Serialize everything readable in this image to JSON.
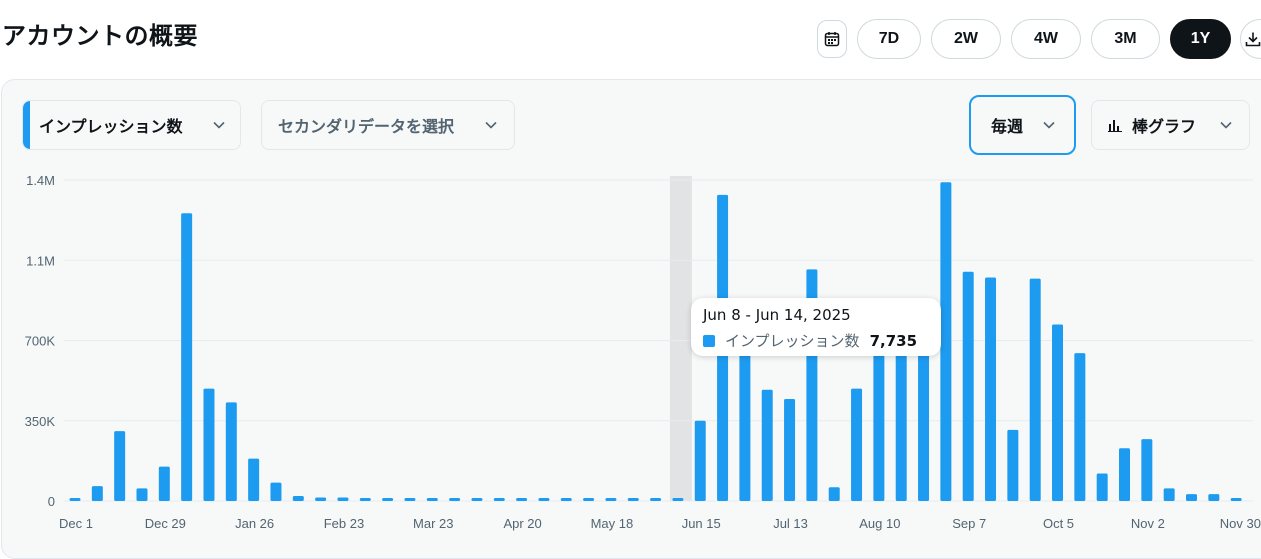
{
  "page": {
    "title": "アカウントの概要"
  },
  "toolbar": {
    "calendar_icon": "calendar-icon",
    "ranges": [
      "7D",
      "2W",
      "4W",
      "3M",
      "1Y"
    ],
    "active_range": "1Y",
    "download_icon": "download-icon"
  },
  "controls": {
    "primary_metric": "インプレッション数",
    "secondary_placeholder": "セカンダリデータを選択",
    "period": "毎週",
    "chart_type": "棒グラフ"
  },
  "tooltip": {
    "range": "Jun 8 - Jun 14, 2025",
    "series": "インプレッション数",
    "value": "7,735"
  },
  "colors": {
    "bar": "#1d9bf0",
    "highlight": "#e1e3e5",
    "accent": "#1d9bf0"
  },
  "chart_data": {
    "type": "bar",
    "series": [
      {
        "name": "インプレッション数"
      }
    ],
    "y_ticks": [
      "0",
      "350K",
      "700K",
      "1.1M",
      "1.4M"
    ],
    "ylim": [
      0,
      1400000
    ],
    "x_tick_labels": [
      "Dec 1",
      "Dec 29",
      "Jan 26",
      "Feb 23",
      "Mar 23",
      "Apr 20",
      "May 18",
      "Jun 15",
      "Jul 13",
      "Aug 10",
      "Sep 7",
      "Oct 5",
      "Nov 2",
      "Nov 30"
    ],
    "x_tick_indices": [
      0,
      4,
      8,
      12,
      16,
      20,
      24,
      28,
      32,
      36,
      40,
      44,
      48,
      52
    ],
    "values": [
      8000,
      65000,
      305000,
      55000,
      150000,
      1255000,
      490000,
      430000,
      185000,
      80000,
      22000,
      15000,
      15000,
      12000,
      12000,
      11000,
      12000,
      10000,
      10000,
      9000,
      9000,
      9000,
      9000,
      8000,
      8000,
      8000,
      8000,
      7735,
      350000,
      1335000,
      640000,
      485000,
      445000,
      1010000,
      60000,
      490000,
      640000,
      700000,
      640000,
      1390000,
      1000000,
      975000,
      310000,
      970000,
      770000,
      645000,
      120000,
      230000,
      270000,
      55000,
      30000,
      30000,
      7000
    ],
    "highlight_index": 27,
    "grid": true
  }
}
